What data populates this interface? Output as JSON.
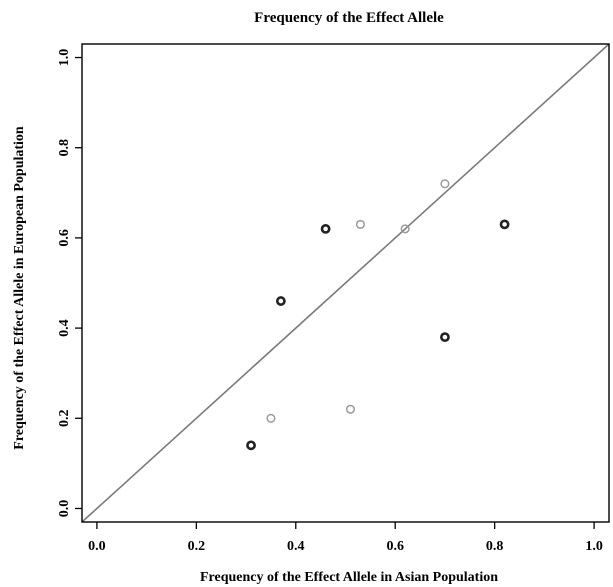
{
  "chart_data": {
    "type": "scatter",
    "title": "Frequency of the Effect Allele",
    "xlabel": "Frequency of the Effect Allele in Asian Population",
    "ylabel": "Frequency of the Effect Allele in European Population",
    "xlim": [
      -0.03,
      1.03
    ],
    "ylim": [
      -0.03,
      1.03
    ],
    "xticks": [
      "0.0",
      "0.2",
      "0.4",
      "0.6",
      "0.8",
      "1.0"
    ],
    "yticks": [
      "0.0",
      "0.2",
      "0.4",
      "0.6",
      "0.8",
      "1.0"
    ],
    "grid": false,
    "reference_line": "y = x",
    "series": [
      {
        "color": "#222222",
        "points": [
          {
            "x": 0.31,
            "y": 0.14
          },
          {
            "x": 0.37,
            "y": 0.46
          },
          {
            "x": 0.46,
            "y": 0.62
          },
          {
            "x": 0.7,
            "y": 0.38
          },
          {
            "x": 0.82,
            "y": 0.63
          }
        ]
      },
      {
        "color": "#9a9a9a",
        "points": [
          {
            "x": 0.35,
            "y": 0.2
          },
          {
            "x": 0.51,
            "y": 0.22
          },
          {
            "x": 0.53,
            "y": 0.63
          },
          {
            "x": 0.62,
            "y": 0.62
          },
          {
            "x": 0.7,
            "y": 0.72
          }
        ]
      }
    ],
    "line_color": "#7a7a7a"
  }
}
